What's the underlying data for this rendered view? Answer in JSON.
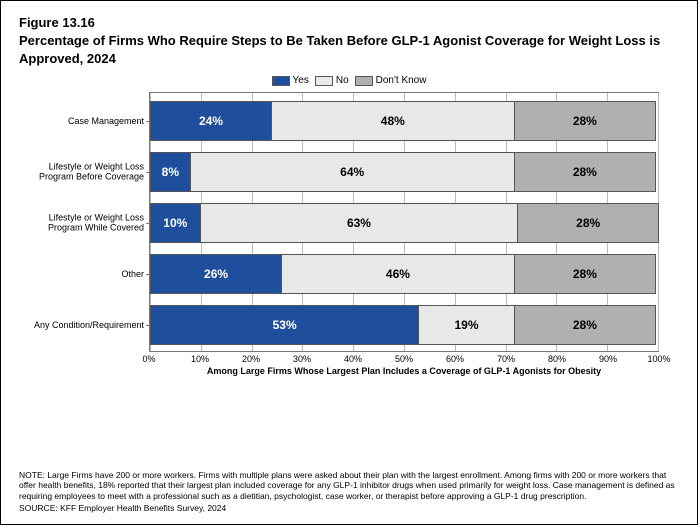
{
  "figure_number": "Figure 13.16",
  "figure_title": "Percentage of Firms Who Require Steps to Be Taken Before GLP-1 Agonist Coverage for Weight Loss is Approved, 2024",
  "legend": {
    "yes": "Yes",
    "no": "No",
    "dk": "Don't Know"
  },
  "colors": {
    "yes": "#1f4e9c",
    "no": "#e8e8e8",
    "dk": "#b0b0b0",
    "border": "#555555",
    "grid": "#bbbbbb",
    "text": "#000000",
    "bg": "#ffffff"
  },
  "chart": {
    "type": "stacked-bar-horizontal",
    "x_min": 0,
    "x_max": 100,
    "x_tick_step": 10,
    "x_axis_title": "Among Large Firms Whose Largest Plan Includes a Coverage of GLP-1 Agonists for Obesity",
    "categories": [
      {
        "label": "Case Management",
        "yes": 24,
        "no": 48,
        "dk": 28
      },
      {
        "label": "Lifestyle or Weight Loss Program Before Coverage",
        "yes": 8,
        "no": 64,
        "dk": 28
      },
      {
        "label": "Lifestyle or Weight Loss Program While Covered",
        "yes": 10,
        "no": 63,
        "dk": 28
      },
      {
        "label": "Other",
        "yes": 26,
        "no": 46,
        "dk": 28
      },
      {
        "label": "Any Condition/Requirement",
        "yes": 53,
        "no": 19,
        "dk": 28
      }
    ],
    "ticks": {
      "t0": "0%",
      "t10": "10%",
      "t20": "20%",
      "t30": "30%",
      "t40": "40%",
      "t50": "50%",
      "t60": "60%",
      "t70": "70%",
      "t80": "80%",
      "t90": "90%",
      "t100": "100%"
    },
    "value_labels": {
      "r0": {
        "yes": "24%",
        "no": "48%",
        "dk": "28%"
      },
      "r1": {
        "yes": "8%",
        "no": "64%",
        "dk": "28%"
      },
      "r2": {
        "yes": "10%",
        "no": "63%",
        "dk": "28%"
      },
      "r3": {
        "yes": "26%",
        "no": "46%",
        "dk": "28%"
      },
      "r4": {
        "yes": "53%",
        "no": "19%",
        "dk": "28%"
      }
    }
  },
  "note_text": "NOTE: Large Firms have 200 or more workers.  Firms with multiple plans were asked about their plan with the largest enrollment.  Among firms with 200 or more workers that offer health benefits, 18% reported that their largest plan included coverage for any GLP-1 inhibitor drugs when used primarily for weight loss. Case management is defined as requiring employees to meet with a professional such as a dietitian, psychologist, case worker, or therapist before approving a GLP-1 drug prescription.",
  "source_text": "SOURCE: KFF Employer Health Benefits Survey, 2024"
}
